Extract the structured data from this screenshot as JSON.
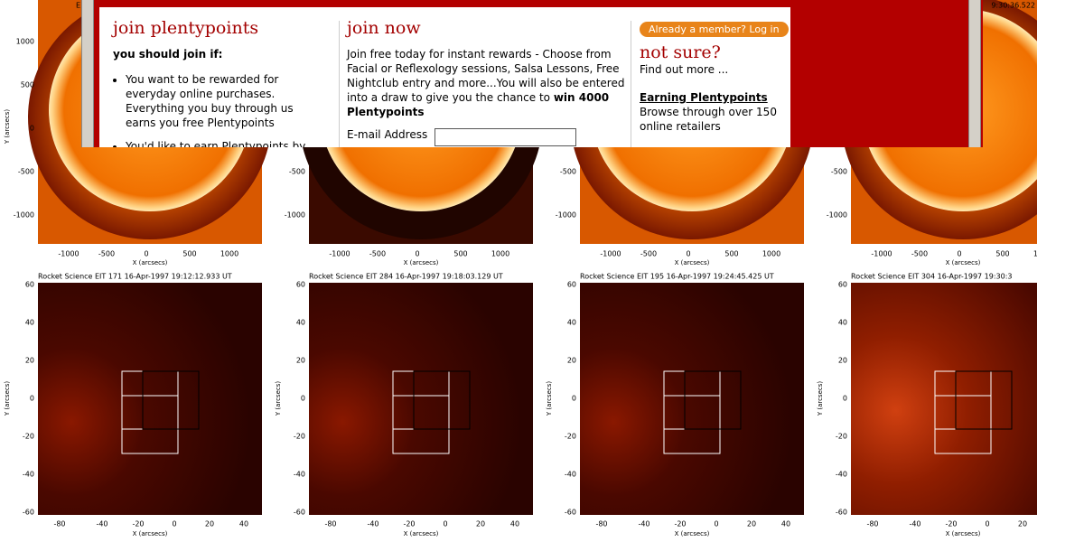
{
  "top_row": {
    "title_left": "E",
    "title_right": "9:30:36.522",
    "yticks": [
      "1000",
      "500",
      "0",
      "-500",
      "-1000"
    ],
    "xticks": [
      "-1000",
      "-500",
      "0",
      "500",
      "1000"
    ],
    "xlabel": "X (arcsecs)",
    "ylabel": "Y (arcsecs)"
  },
  "bottom_row": {
    "titles": [
      "Rocket Science EIT 171 16-Apr-1997 19:12:12.933 UT",
      "Rocket Science EIT 284 16-Apr-1997 19:18:03.129 UT",
      "Rocket Science EIT 195 16-Apr-1997 19:24:45.425 UT",
      "Rocket Science EIT 304 16-Apr-1997 19:30:3"
    ],
    "yticks": [
      "60",
      "40",
      "20",
      "0",
      "-20",
      "-40",
      "-60"
    ],
    "xticks": [
      "-80",
      "-40",
      "-20",
      "0",
      "20",
      "40"
    ],
    "xlabel": "X (arcsecs)",
    "ylabel": "Y (arcsecs)"
  },
  "popup": {
    "join": {
      "title": "join plentypoints",
      "subtitle": "you should join if:",
      "bullets": [
        "You want to be rewarded for everyday online purchases. Everything you buy through us earns you free Plentypoints",
        "You'd like to earn Plentypoints by"
      ]
    },
    "join_now": {
      "title": "join now",
      "text": "Join free today for instant rewards - Choose from Facial or Reflexology sessions, Salsa Lessons, Free Nightclub entry and more...You will also be entered into a draw to give you the chance to",
      "bold": "win 4000 Plentypoints",
      "email_label": "E-mail Address"
    },
    "side": {
      "login_button": "Already a member? Log in",
      "not_sure": "not sure?",
      "find_out": "Find out more ...",
      "earning_title": "Earning Plentypoints",
      "earning_text": "Browse through over 150 online retailers"
    }
  }
}
